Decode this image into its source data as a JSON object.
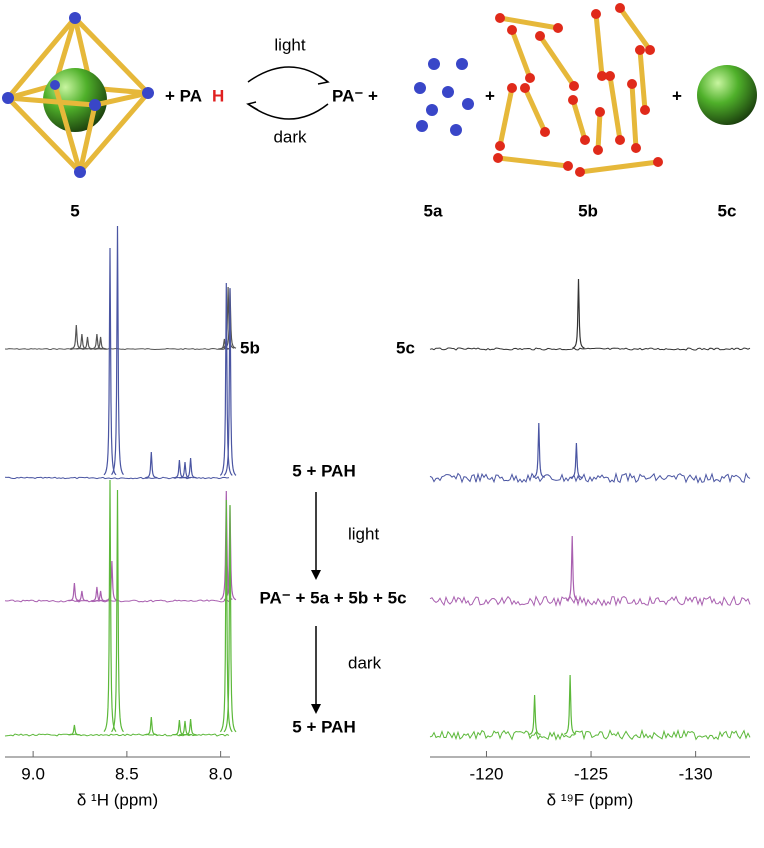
{
  "scheme": {
    "reactant_plus_pa": "+ PA",
    "reactant_h": "H",
    "light": "light",
    "dark": "dark",
    "product_pa": "PA⁻ +",
    "plus_1": "+",
    "plus_2": "+",
    "label_5": "5",
    "label_5a": "5a",
    "label_5b": "5b",
    "label_5c": "5c"
  },
  "spectrum_labels": {
    "left_top": "5b",
    "right_top": "5c",
    "row2": "5 + PAH",
    "arrow1": "light",
    "row3": "PA⁻ + 5a + 5b + 5c",
    "arrow2": "dark",
    "row4": "5 + PAH"
  },
  "chart_data": [
    {
      "type": "line",
      "xlabel": "δ ¹H (ppm)",
      "xlim": [
        9.15,
        7.95
      ],
      "xticks": [
        {
          "value": 9,
          "label": "9.0"
        },
        8.5,
        {
          "value": 8,
          "label": "8.0"
        }
      ],
      "series": [
        {
          "color": "#555555",
          "x": [
            8.77,
            8.74,
            8.71,
            8.66,
            8.64,
            7.98,
            7.96,
            7.95
          ],
          "values": [
            24,
            15,
            12,
            15,
            12,
            10,
            62,
            60
          ]
        },
        {
          "color": "#4a55a2",
          "x": [
            8.59,
            8.55,
            8.37,
            8.22,
            8.19,
            8.16,
            7.97,
            7.95
          ],
          "values": [
            230,
            252,
            26,
            18,
            16,
            20,
            195,
            190
          ]
        },
        {
          "color": "#a960b0",
          "x": [
            8.78,
            8.74,
            8.66,
            8.64,
            8.58,
            7.97,
            7.95
          ],
          "values": [
            18,
            10,
            14,
            10,
            40,
            110,
            95
          ]
        },
        {
          "color": "#5cb83a",
          "x": [
            8.78,
            8.59,
            8.55,
            8.37,
            8.22,
            8.19,
            8.16,
            7.97,
            7.95
          ],
          "values": [
            10,
            255,
            245,
            18,
            15,
            14,
            16,
            235,
            230
          ]
        }
      ]
    },
    {
      "type": "line",
      "xlabel": "δ ¹⁹F (ppm)",
      "xlim": [
        -117.3,
        -132.6
      ],
      "xticks": [
        -120,
        -125,
        -130
      ],
      "series": [
        {
          "color": "#333333",
          "x": [
            -124.4
          ],
          "values": [
            70
          ]
        },
        {
          "color": "#4a55a2",
          "x": [
            -122.5,
            -124.3
          ],
          "values": [
            55,
            35
          ]
        },
        {
          "color": "#a960b0",
          "x": [
            -124.1
          ],
          "values": [
            65
          ]
        },
        {
          "color": "#5cb83a",
          "x": [
            -122.3,
            -124.0
          ],
          "values": [
            40,
            60
          ]
        }
      ]
    }
  ]
}
